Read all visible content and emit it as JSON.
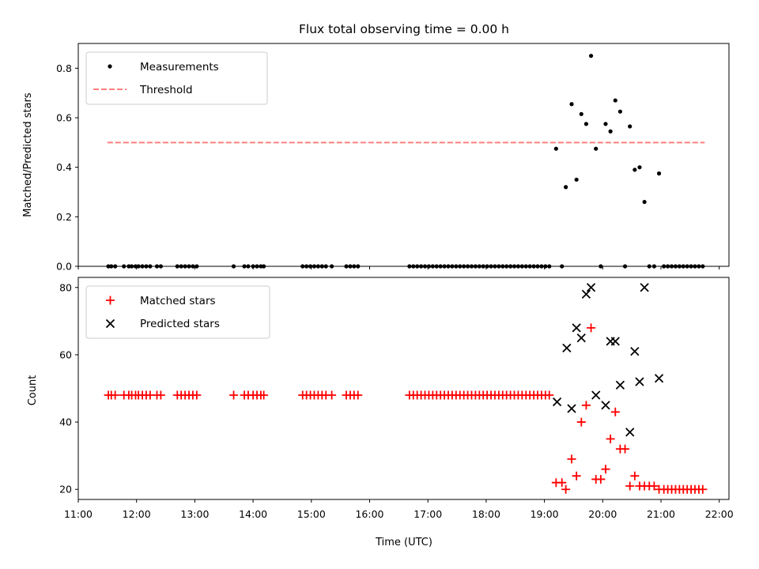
{
  "title": "Flux total observing time = 0.00 h",
  "colors": {
    "measurement": "#000000",
    "threshold": "#ff7f7f",
    "matched": "#ff0000",
    "predicted": "#000000",
    "legend_border": "#cccccc"
  },
  "chart_data": [
    {
      "type": "scatter",
      "ylabel": "Matched/Predicted stars",
      "xlim": [
        "11:00",
        "22:10"
      ],
      "ylim": [
        0,
        0.9
      ],
      "yticks": [
        0.0,
        0.2,
        0.4,
        0.6,
        0.8
      ],
      "ytick_labels": [
        "0.0",
        "0.2",
        "0.4",
        "0.6",
        "0.8"
      ],
      "grid": false,
      "legend": "top-left",
      "threshold": {
        "name": "Threshold",
        "value": 0.5,
        "x_range": [
          "11:30",
          "21:45"
        ],
        "style": "dashed"
      },
      "series": [
        {
          "name": "Measurements",
          "marker": "dot",
          "points": [
            [
              "11:31",
              0
            ],
            [
              "11:34",
              0
            ],
            [
              "11:38",
              0
            ],
            [
              "11:47",
              0
            ],
            [
              "11:52",
              0
            ],
            [
              "11:55",
              0
            ],
            [
              "11:59",
              0
            ],
            [
              "12:02",
              0
            ],
            [
              "12:06",
              0
            ],
            [
              "12:10",
              0
            ],
            [
              "12:14",
              0
            ],
            [
              "12:21",
              0
            ],
            [
              "12:25",
              0
            ],
            [
              "12:42",
              0
            ],
            [
              "12:46",
              0
            ],
            [
              "12:50",
              0
            ],
            [
              "12:54",
              0
            ],
            [
              "12:58",
              0
            ],
            [
              "13:02",
              0
            ],
            [
              "13:40",
              0
            ],
            [
              "13:51",
              0
            ],
            [
              "13:55",
              0
            ],
            [
              "14:00",
              0
            ],
            [
              "14:04",
              0
            ],
            [
              "14:08",
              0
            ],
            [
              "14:11",
              0
            ],
            [
              "14:51",
              0
            ],
            [
              "14:55",
              0
            ],
            [
              "14:59",
              0
            ],
            [
              "15:03",
              0
            ],
            [
              "15:07",
              0
            ],
            [
              "15:11",
              0
            ],
            [
              "15:15",
              0
            ],
            [
              "15:21",
              0
            ],
            [
              "15:36",
              0
            ],
            [
              "15:40",
              0
            ],
            [
              "15:44",
              0
            ],
            [
              "15:48",
              0
            ],
            [
              "16:41",
              0
            ],
            [
              "16:45",
              0
            ],
            [
              "16:49",
              0
            ],
            [
              "16:53",
              0
            ],
            [
              "16:57",
              0
            ],
            [
              "17:01",
              0
            ],
            [
              "17:05",
              0
            ],
            [
              "17:09",
              0
            ],
            [
              "17:13",
              0
            ],
            [
              "17:17",
              0
            ],
            [
              "17:21",
              0
            ],
            [
              "17:25",
              0
            ],
            [
              "17:29",
              0
            ],
            [
              "17:33",
              0
            ],
            [
              "17:37",
              0
            ],
            [
              "17:41",
              0
            ],
            [
              "17:45",
              0
            ],
            [
              "17:49",
              0
            ],
            [
              "17:53",
              0
            ],
            [
              "17:57",
              0
            ],
            [
              "18:01",
              0
            ],
            [
              "18:05",
              0
            ],
            [
              "18:09",
              0
            ],
            [
              "18:13",
              0
            ],
            [
              "18:17",
              0
            ],
            [
              "18:21",
              0
            ],
            [
              "18:25",
              0
            ],
            [
              "18:29",
              0
            ],
            [
              "18:33",
              0
            ],
            [
              "18:37",
              0
            ],
            [
              "18:41",
              0
            ],
            [
              "18:45",
              0
            ],
            [
              "18:49",
              0
            ],
            [
              "18:53",
              0
            ],
            [
              "18:57",
              0
            ],
            [
              "19:01",
              0
            ],
            [
              "19:05",
              0
            ],
            [
              "19:12",
              0.475
            ],
            [
              "19:18",
              0
            ],
            [
              "19:22",
              0.32
            ],
            [
              "19:28",
              0.655
            ],
            [
              "19:33",
              0.35
            ],
            [
              "19:38",
              0.615
            ],
            [
              "19:43",
              0.575
            ],
            [
              "19:48",
              0.85
            ],
            [
              "19:53",
              0.475
            ],
            [
              "19:58",
              0
            ],
            [
              "20:03",
              0.575
            ],
            [
              "20:08",
              0.545
            ],
            [
              "20:13",
              0.67
            ],
            [
              "20:18",
              0.625
            ],
            [
              "20:23",
              0
            ],
            [
              "20:28",
              0.565
            ],
            [
              "20:33",
              0.39
            ],
            [
              "20:38",
              0.4
            ],
            [
              "20:43",
              0.26
            ],
            [
              "20:48",
              0
            ],
            [
              "20:53",
              0
            ],
            [
              "20:58",
              0.375
            ],
            [
              "21:03",
              0
            ],
            [
              "21:07",
              0
            ],
            [
              "21:11",
              0
            ],
            [
              "21:15",
              0
            ],
            [
              "21:19",
              0
            ],
            [
              "21:23",
              0
            ],
            [
              "21:27",
              0
            ],
            [
              "21:31",
              0
            ],
            [
              "21:35",
              0
            ],
            [
              "21:39",
              0
            ],
            [
              "21:43",
              0
            ]
          ]
        }
      ]
    },
    {
      "type": "scatter",
      "xlabel": "Time (UTC)",
      "ylabel": "Count",
      "xlim": [
        "11:00",
        "22:10"
      ],
      "xticks": [
        "11:00",
        "12:00",
        "13:00",
        "14:00",
        "15:00",
        "16:00",
        "17:00",
        "18:00",
        "19:00",
        "20:00",
        "21:00",
        "22:00"
      ],
      "ylim": [
        17,
        83
      ],
      "yticks": [
        20,
        40,
        60,
        80
      ],
      "ytick_labels": [
        "20",
        "40",
        "60",
        "80"
      ],
      "grid": false,
      "legend": "top-left",
      "series": [
        {
          "name": "Matched stars",
          "marker": "plus",
          "points": [
            [
              "11:31",
              48
            ],
            [
              "11:34",
              48
            ],
            [
              "11:38",
              48
            ],
            [
              "11:47",
              48
            ],
            [
              "11:52",
              48
            ],
            [
              "11:55",
              48
            ],
            [
              "11:59",
              48
            ],
            [
              "12:02",
              48
            ],
            [
              "12:06",
              48
            ],
            [
              "12:10",
              48
            ],
            [
              "12:14",
              48
            ],
            [
              "12:21",
              48
            ],
            [
              "12:25",
              48
            ],
            [
              "12:42",
              48
            ],
            [
              "12:46",
              48
            ],
            [
              "12:50",
              48
            ],
            [
              "12:54",
              48
            ],
            [
              "12:58",
              48
            ],
            [
              "13:02",
              48
            ],
            [
              "13:40",
              48
            ],
            [
              "13:51",
              48
            ],
            [
              "13:55",
              48
            ],
            [
              "14:00",
              48
            ],
            [
              "14:04",
              48
            ],
            [
              "14:08",
              48
            ],
            [
              "14:11",
              48
            ],
            [
              "14:51",
              48
            ],
            [
              "14:55",
              48
            ],
            [
              "14:59",
              48
            ],
            [
              "15:03",
              48
            ],
            [
              "15:07",
              48
            ],
            [
              "15:11",
              48
            ],
            [
              "15:15",
              48
            ],
            [
              "15:21",
              48
            ],
            [
              "15:36",
              48
            ],
            [
              "15:40",
              48
            ],
            [
              "15:44",
              48
            ],
            [
              "15:48",
              48
            ],
            [
              "16:41",
              48
            ],
            [
              "16:45",
              48
            ],
            [
              "16:49",
              48
            ],
            [
              "16:53",
              48
            ],
            [
              "16:57",
              48
            ],
            [
              "17:01",
              48
            ],
            [
              "17:05",
              48
            ],
            [
              "17:09",
              48
            ],
            [
              "17:13",
              48
            ],
            [
              "17:17",
              48
            ],
            [
              "17:21",
              48
            ],
            [
              "17:25",
              48
            ],
            [
              "17:29",
              48
            ],
            [
              "17:33",
              48
            ],
            [
              "17:37",
              48
            ],
            [
              "17:41",
              48
            ],
            [
              "17:45",
              48
            ],
            [
              "17:49",
              48
            ],
            [
              "17:53",
              48
            ],
            [
              "17:57",
              48
            ],
            [
              "18:01",
              48
            ],
            [
              "18:05",
              48
            ],
            [
              "18:09",
              48
            ],
            [
              "18:13",
              48
            ],
            [
              "18:17",
              48
            ],
            [
              "18:21",
              48
            ],
            [
              "18:25",
              48
            ],
            [
              "18:29",
              48
            ],
            [
              "18:33",
              48
            ],
            [
              "18:37",
              48
            ],
            [
              "18:41",
              48
            ],
            [
              "18:45",
              48
            ],
            [
              "18:49",
              48
            ],
            [
              "18:53",
              48
            ],
            [
              "18:57",
              48
            ],
            [
              "19:01",
              48
            ],
            [
              "19:05",
              48
            ],
            [
              "19:12",
              22
            ],
            [
              "19:18",
              22
            ],
            [
              "19:22",
              20
            ],
            [
              "19:28",
              29
            ],
            [
              "19:33",
              24
            ],
            [
              "19:38",
              40
            ],
            [
              "19:43",
              45
            ],
            [
              "19:48",
              68
            ],
            [
              "19:53",
              23
            ],
            [
              "19:58",
              23
            ],
            [
              "20:03",
              26
            ],
            [
              "20:08",
              35
            ],
            [
              "20:13",
              43
            ],
            [
              "20:18",
              32
            ],
            [
              "20:23",
              32
            ],
            [
              "20:28",
              21
            ],
            [
              "20:33",
              24
            ],
            [
              "20:38",
              21
            ],
            [
              "20:43",
              21
            ],
            [
              "20:48",
              21
            ],
            [
              "20:53",
              21
            ],
            [
              "20:58",
              20
            ],
            [
              "21:03",
              20
            ],
            [
              "21:07",
              20
            ],
            [
              "21:11",
              20
            ],
            [
              "21:15",
              20
            ],
            [
              "21:19",
              20
            ],
            [
              "21:23",
              20
            ],
            [
              "21:27",
              20
            ],
            [
              "21:31",
              20
            ],
            [
              "21:35",
              20
            ],
            [
              "21:39",
              20
            ],
            [
              "21:43",
              20
            ]
          ]
        },
        {
          "name": "Predicted stars",
          "marker": "x",
          "points": [
            [
              "19:13",
              46
            ],
            [
              "19:23",
              62
            ],
            [
              "19:28",
              44
            ],
            [
              "19:33",
              68
            ],
            [
              "19:38",
              65
            ],
            [
              "19:43",
              78
            ],
            [
              "19:48",
              80
            ],
            [
              "19:53",
              48
            ],
            [
              "20:03",
              45
            ],
            [
              "20:08",
              64
            ],
            [
              "20:13",
              64
            ],
            [
              "20:18",
              51
            ],
            [
              "20:28",
              37
            ],
            [
              "20:33",
              61
            ],
            [
              "20:38",
              52
            ],
            [
              "20:43",
              80
            ],
            [
              "20:58",
              53
            ]
          ]
        }
      ]
    }
  ]
}
